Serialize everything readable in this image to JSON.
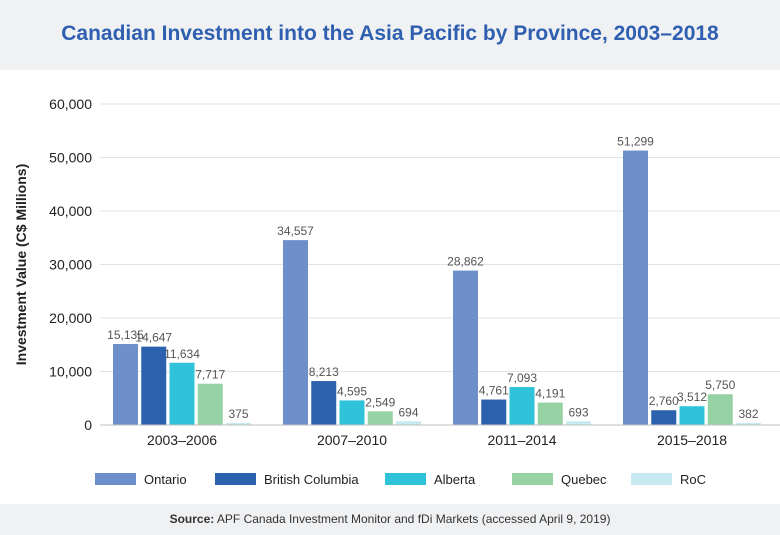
{
  "title": "Canadian Investment into the Asia Pacific by Province, 2003–2018",
  "footer": {
    "source_label": "Source:",
    "source_text": "APF Canada Investment Monitor and fDi Markets (accessed April 9, 2019)"
  },
  "chart_data": {
    "type": "bar",
    "title": "Canadian Investment into the Asia Pacific by Province, 2003–2018",
    "xlabel": "",
    "ylabel": "Investment Value (C$ Millions)",
    "ylim": [
      0,
      60000
    ],
    "yticks": [
      0,
      10000,
      20000,
      30000,
      40000,
      50000,
      60000
    ],
    "ytick_labels": [
      "0",
      "10,000",
      "20,000",
      "30,000",
      "40,000",
      "50,000",
      "60,000"
    ],
    "grid": true,
    "legend_position": "bottom",
    "categories": [
      "2003–2006",
      "2007–2010",
      "2011–2014",
      "2015–2018"
    ],
    "series": [
      {
        "name": "Ontario",
        "color": "#6f8fcb",
        "values": [
          15135,
          34557,
          28862,
          51299
        ],
        "labels": [
          "15,135",
          "34,557",
          "28,862",
          "51,299"
        ]
      },
      {
        "name": "British Columbia",
        "color": "#2c62ad",
        "values": [
          14647,
          8213,
          4761,
          2760
        ],
        "labels": [
          "14,647",
          "8,213",
          "4,761",
          "2,760"
        ]
      },
      {
        "name": "Alberta",
        "color": "#2ec3d8",
        "values": [
          11634,
          4595,
          7093,
          3512
        ],
        "labels": [
          "11,634",
          "4,595",
          "7,093",
          "3,512"
        ]
      },
      {
        "name": "Quebec",
        "color": "#97d2a4",
        "values": [
          7717,
          2549,
          4191,
          5750
        ],
        "labels": [
          "7,717",
          "2,549",
          "4,191",
          "5,750"
        ]
      },
      {
        "name": "RoC",
        "color": "#c6eaf0",
        "values": [
          375,
          694,
          693,
          382
        ],
        "labels": [
          "375",
          "694",
          "693",
          "382"
        ]
      }
    ]
  }
}
